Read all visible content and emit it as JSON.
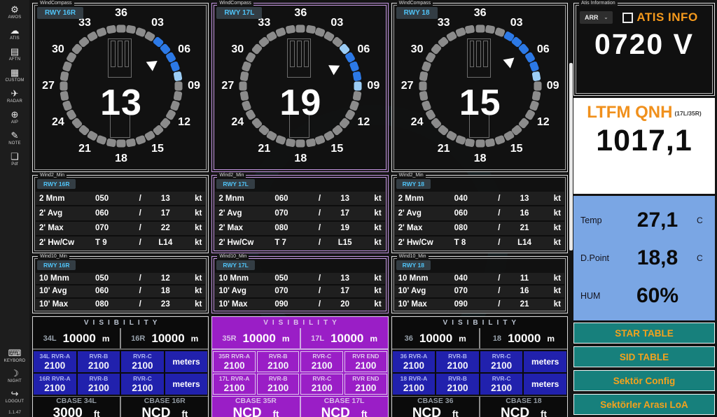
{
  "sidebar": {
    "items": [
      {
        "name": "awos",
        "icon": "⚙",
        "label": "AWOS"
      },
      {
        "name": "atis",
        "icon": "☁",
        "label": "ATIS"
      },
      {
        "name": "aftn",
        "icon": "▤",
        "label": "AFTN"
      },
      {
        "name": "custom",
        "icon": "▦",
        "label": "CUSTOM"
      },
      {
        "name": "radar",
        "icon": "✈",
        "label": "RADAR"
      },
      {
        "name": "aip",
        "icon": "⊕",
        "label": "AIP"
      },
      {
        "name": "note",
        "icon": "✎",
        "label": "NOTE"
      },
      {
        "name": "pdf",
        "icon": "❏",
        "label": "Pdf"
      }
    ],
    "bottom_items": [
      {
        "name": "keyboard",
        "icon": "⌨",
        "label": "KEYBORD"
      },
      {
        "name": "night",
        "icon": "☽",
        "label": "NIGHT"
      },
      {
        "name": "logout",
        "icon": "↪",
        "label": "LOGOUT"
      }
    ],
    "version": "1.1.47"
  },
  "compass_labels": [
    "36",
    "03",
    "06",
    "09",
    "12",
    "15",
    "18",
    "21",
    "24",
    "27",
    "30",
    "33"
  ],
  "columns": [
    {
      "theme": "dark",
      "selected": false,
      "runway": "RWY 16R",
      "compass": {
        "group_label": "WindCompass",
        "speed": "13",
        "arrow_heading": 55,
        "blue": [
          40,
          50,
          60,
          70
        ],
        "light_blue": [
          80
        ]
      },
      "wind2": {
        "group_label": "Wind2_Min",
        "rows": [
          {
            "label": "2 Mnm",
            "dir": "050",
            "sep": "/",
            "speed": "13",
            "unit": "kt"
          },
          {
            "label": "2' Avg",
            "dir": "060",
            "sep": "/",
            "speed": "17",
            "unit": "kt"
          },
          {
            "label": "2' Max",
            "dir": "070",
            "sep": "/",
            "speed": "22",
            "unit": "kt"
          },
          {
            "label": "2' Hw/Cw",
            "dir": "T 9",
            "sep": "/",
            "speed": "L14",
            "unit": "kt"
          }
        ]
      },
      "wind10": {
        "group_label": "Wind10_Min",
        "rows": [
          {
            "label": "10 Mnm",
            "dir": "050",
            "sep": "/",
            "speed": "12",
            "unit": "kt"
          },
          {
            "label": "10' Avg",
            "dir": "060",
            "sep": "/",
            "speed": "18",
            "unit": "kt"
          },
          {
            "label": "10' Max",
            "dir": "080",
            "sep": "/",
            "speed": "23",
            "unit": "kt"
          }
        ]
      },
      "visibility": {
        "title": "VISIBILITY",
        "vis": [
          {
            "label": "34L",
            "value": "10000",
            "unit": "m"
          },
          {
            "label": "16R",
            "value": "10000",
            "unit": "m"
          }
        ],
        "rvr_rows": [
          {
            "cells": [
              {
                "label": "34L RVR-A",
                "value": "2100"
              },
              {
                "label": "RVR-B",
                "value": "2100"
              },
              {
                "label": "RVR-C",
                "value": "2100"
              }
            ],
            "unit": "meters"
          },
          {
            "cells": [
              {
                "label": "16R RVR-A",
                "value": "2100"
              },
              {
                "label": "RVR-B",
                "value": "2100"
              },
              {
                "label": "RVR-C",
                "value": "2100"
              }
            ],
            "unit": "meters"
          }
        ],
        "cbase": [
          {
            "label": "CBASE 34L",
            "value": "3000",
            "unit": "ft"
          },
          {
            "label": "CBASE 16R",
            "value": "NCD",
            "unit": "ft"
          }
        ]
      }
    },
    {
      "theme": "purple",
      "selected": true,
      "runway": "RWY 17L",
      "compass": {
        "group_label": "WindCompass",
        "speed": "19",
        "arrow_heading": 62,
        "blue": [
          60,
          70,
          80
        ],
        "light_blue": [
          50,
          90
        ]
      },
      "wind2": {
        "group_label": "Wind2_Min",
        "rows": [
          {
            "label": "2 Mnm",
            "dir": "060",
            "sep": "/",
            "speed": "13",
            "unit": "kt"
          },
          {
            "label": "2' Avg",
            "dir": "070",
            "sep": "/",
            "speed": "17",
            "unit": "kt"
          },
          {
            "label": "2' Max",
            "dir": "080",
            "sep": "/",
            "speed": "19",
            "unit": "kt"
          },
          {
            "label": "2' Hw/Cw",
            "dir": "T 7",
            "sep": "/",
            "speed": "L15",
            "unit": "kt"
          }
        ]
      },
      "wind10": {
        "group_label": "Wind10_Min",
        "rows": [
          {
            "label": "10 Mnm",
            "dir": "050",
            "sep": "/",
            "speed": "13",
            "unit": "kt"
          },
          {
            "label": "10' Avg",
            "dir": "070",
            "sep": "/",
            "speed": "17",
            "unit": "kt"
          },
          {
            "label": "10' Max",
            "dir": "090",
            "sep": "/",
            "speed": "20",
            "unit": "kt"
          }
        ]
      },
      "visibility": {
        "title": "VISIBILITY",
        "vis": [
          {
            "label": "35R",
            "value": "10000",
            "unit": "m"
          },
          {
            "label": "17L",
            "value": "10000",
            "unit": "m"
          }
        ],
        "rvr_rows": [
          {
            "cells": [
              {
                "label": "35R RVR-A",
                "value": "2100"
              },
              {
                "label": "RVR-B",
                "value": "2100"
              },
              {
                "label": "RVR-C",
                "value": "2100"
              },
              {
                "label": "RVR END",
                "value": "2100"
              }
            ],
            "unit": ""
          },
          {
            "cells": [
              {
                "label": "17L RVR-A",
                "value": "2100"
              },
              {
                "label": "RVR-B",
                "value": "2100"
              },
              {
                "label": "RVR-C",
                "value": "2100"
              },
              {
                "label": "RVR END",
                "value": "2100"
              }
            ],
            "unit": ""
          }
        ],
        "cbase": [
          {
            "label": "CBASE 35R",
            "value": "NCD",
            "unit": "ft"
          },
          {
            "label": "CBASE 17L",
            "value": "NCD",
            "unit": "ft"
          }
        ]
      }
    },
    {
      "theme": "dark",
      "selected": false,
      "runway": "RWY 18",
      "compass": {
        "group_label": "WindCompass",
        "speed": "15",
        "arrow_heading": 50,
        "blue": [
          30,
          40,
          50,
          60,
          70
        ],
        "light_blue": [
          80
        ]
      },
      "wind2": {
        "group_label": "Wind2_Min",
        "rows": [
          {
            "label": "2 Mnm",
            "dir": "040",
            "sep": "/",
            "speed": "13",
            "unit": "kt"
          },
          {
            "label": "2' Avg",
            "dir": "060",
            "sep": "/",
            "speed": "16",
            "unit": "kt"
          },
          {
            "label": "2' Max",
            "dir": "080",
            "sep": "/",
            "speed": "21",
            "unit": "kt"
          },
          {
            "label": "2' Hw/Cw",
            "dir": "T 8",
            "sep": "/",
            "speed": "L14",
            "unit": "kt"
          }
        ]
      },
      "wind10": {
        "group_label": "Wind10_Min",
        "rows": [
          {
            "label": "10 Mnm",
            "dir": "040",
            "sep": "/",
            "speed": "11",
            "unit": "kt"
          },
          {
            "label": "10' Avg",
            "dir": "070",
            "sep": "/",
            "speed": "16",
            "unit": "kt"
          },
          {
            "label": "10' Max",
            "dir": "090",
            "sep": "/",
            "speed": "21",
            "unit": "kt"
          }
        ]
      },
      "visibility": {
        "title": "VISIBILITY",
        "vis": [
          {
            "label": "36",
            "value": "10000",
            "unit": "m"
          },
          {
            "label": "18",
            "value": "10000",
            "unit": "m"
          }
        ],
        "rvr_rows": [
          {
            "cells": [
              {
                "label": "36 RVR-A",
                "value": "2100"
              },
              {
                "label": "RVR-B",
                "value": "2100"
              },
              {
                "label": "RVR-C",
                "value": "2100"
              }
            ],
            "unit": "meters"
          },
          {
            "cells": [
              {
                "label": "18 RVR-A",
                "value": "2100"
              },
              {
                "label": "RVR-B",
                "value": "2100"
              },
              {
                "label": "RVR-C",
                "value": "2100"
              }
            ],
            "unit": "meters"
          }
        ],
        "cbase": [
          {
            "label": "CBASE 36",
            "value": "NCD",
            "unit": "ft"
          },
          {
            "label": "CBASE 18",
            "value": "NCD",
            "unit": "ft"
          }
        ]
      }
    }
  ],
  "atis": {
    "group_label": "Atis Information",
    "dropdown": "ARR",
    "chevron": "⌄",
    "title": "ATIS INFO",
    "value": "0720 V"
  },
  "qnh": {
    "title": "LTFM QNH",
    "runways": "(17L/35R)",
    "value": "1017,1"
  },
  "met": {
    "rows": [
      {
        "label": "Temp",
        "value": "27,1",
        "unit": "C"
      },
      {
        "label": "D.Point",
        "value": "18,8",
        "unit": "C"
      },
      {
        "label": "HUM",
        "value": "60%",
        "unit": ""
      }
    ]
  },
  "buttons": [
    {
      "label": "STAR TABLE"
    },
    {
      "label": "SID TABLE"
    },
    {
      "label": "Sektör Config"
    },
    {
      "label": "Sektörler Arası LoA"
    }
  ],
  "colors": {
    "accent_orange": "#F59A1D",
    "rwy_cyan": "#4FC3F7",
    "rvr_blue": "#2121AD",
    "selected_purple": "#9A1EC6",
    "teal_button": "#17807C",
    "temp_panel_blue": "#7AA6E4",
    "segment_blue": "#2C79E6",
    "segment_light_blue": "#9CCDF5",
    "segment_gray": "#8B8B8B"
  }
}
